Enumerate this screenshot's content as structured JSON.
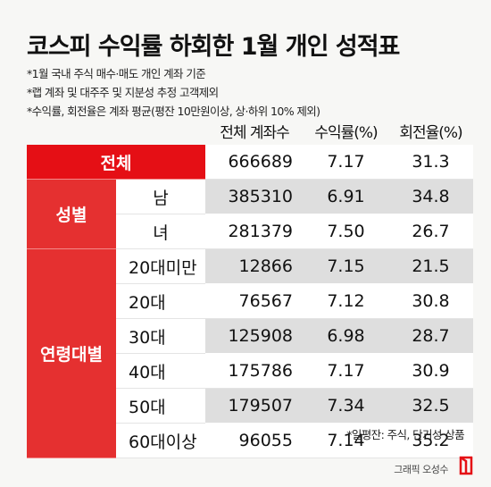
{
  "title": "코스피 수익률 하회한 1월 개인 성적표",
  "notes": [
    "*1월 국내 주식 매수·매도 개인 계좌 기준",
    "*랩 계좌 및 대주주 및 지분성 추정 고객제외",
    "*수익률, 회전율은 계좌 평균(평잔 10만원이상, 상·하위 10% 제외)"
  ],
  "headers": {
    "accounts": "전체 계좌수",
    "return": "수익률(%)",
    "turnover": "회전율(%)"
  },
  "total": {
    "label": "전체",
    "accounts": "666689",
    "return": "7.17",
    "turnover": "31.3"
  },
  "gender": {
    "label": "성별",
    "rows": [
      {
        "label": "남",
        "accounts": "385310",
        "return": "6.91",
        "turnover": "34.8"
      },
      {
        "label": "녀",
        "accounts": "281379",
        "return": "7.50",
        "turnover": "26.7"
      }
    ]
  },
  "age": {
    "label": "연령대별",
    "rows": [
      {
        "label": "20대미만",
        "accounts": "12866",
        "return": "7.15",
        "turnover": "21.5"
      },
      {
        "label": "20대",
        "accounts": "76567",
        "return": "7.12",
        "turnover": "30.8"
      },
      {
        "label": "30대",
        "accounts": "125908",
        "return": "6.98",
        "turnover": "28.7"
      },
      {
        "label": "40대",
        "accounts": "175786",
        "return": "7.17",
        "turnover": "30.9"
      },
      {
        "label": "50대",
        "accounts": "179507",
        "return": "7.34",
        "turnover": "32.5"
      },
      {
        "label": "60대이상",
        "accounts": "96055",
        "return": "7.14",
        "turnover": "35.2"
      }
    ]
  },
  "footnote": "*일평잔: 주식, 단기성 상품",
  "credit": "그래픽 오성수",
  "colors": {
    "red": "#e50f15",
    "shade": "#dedede"
  }
}
